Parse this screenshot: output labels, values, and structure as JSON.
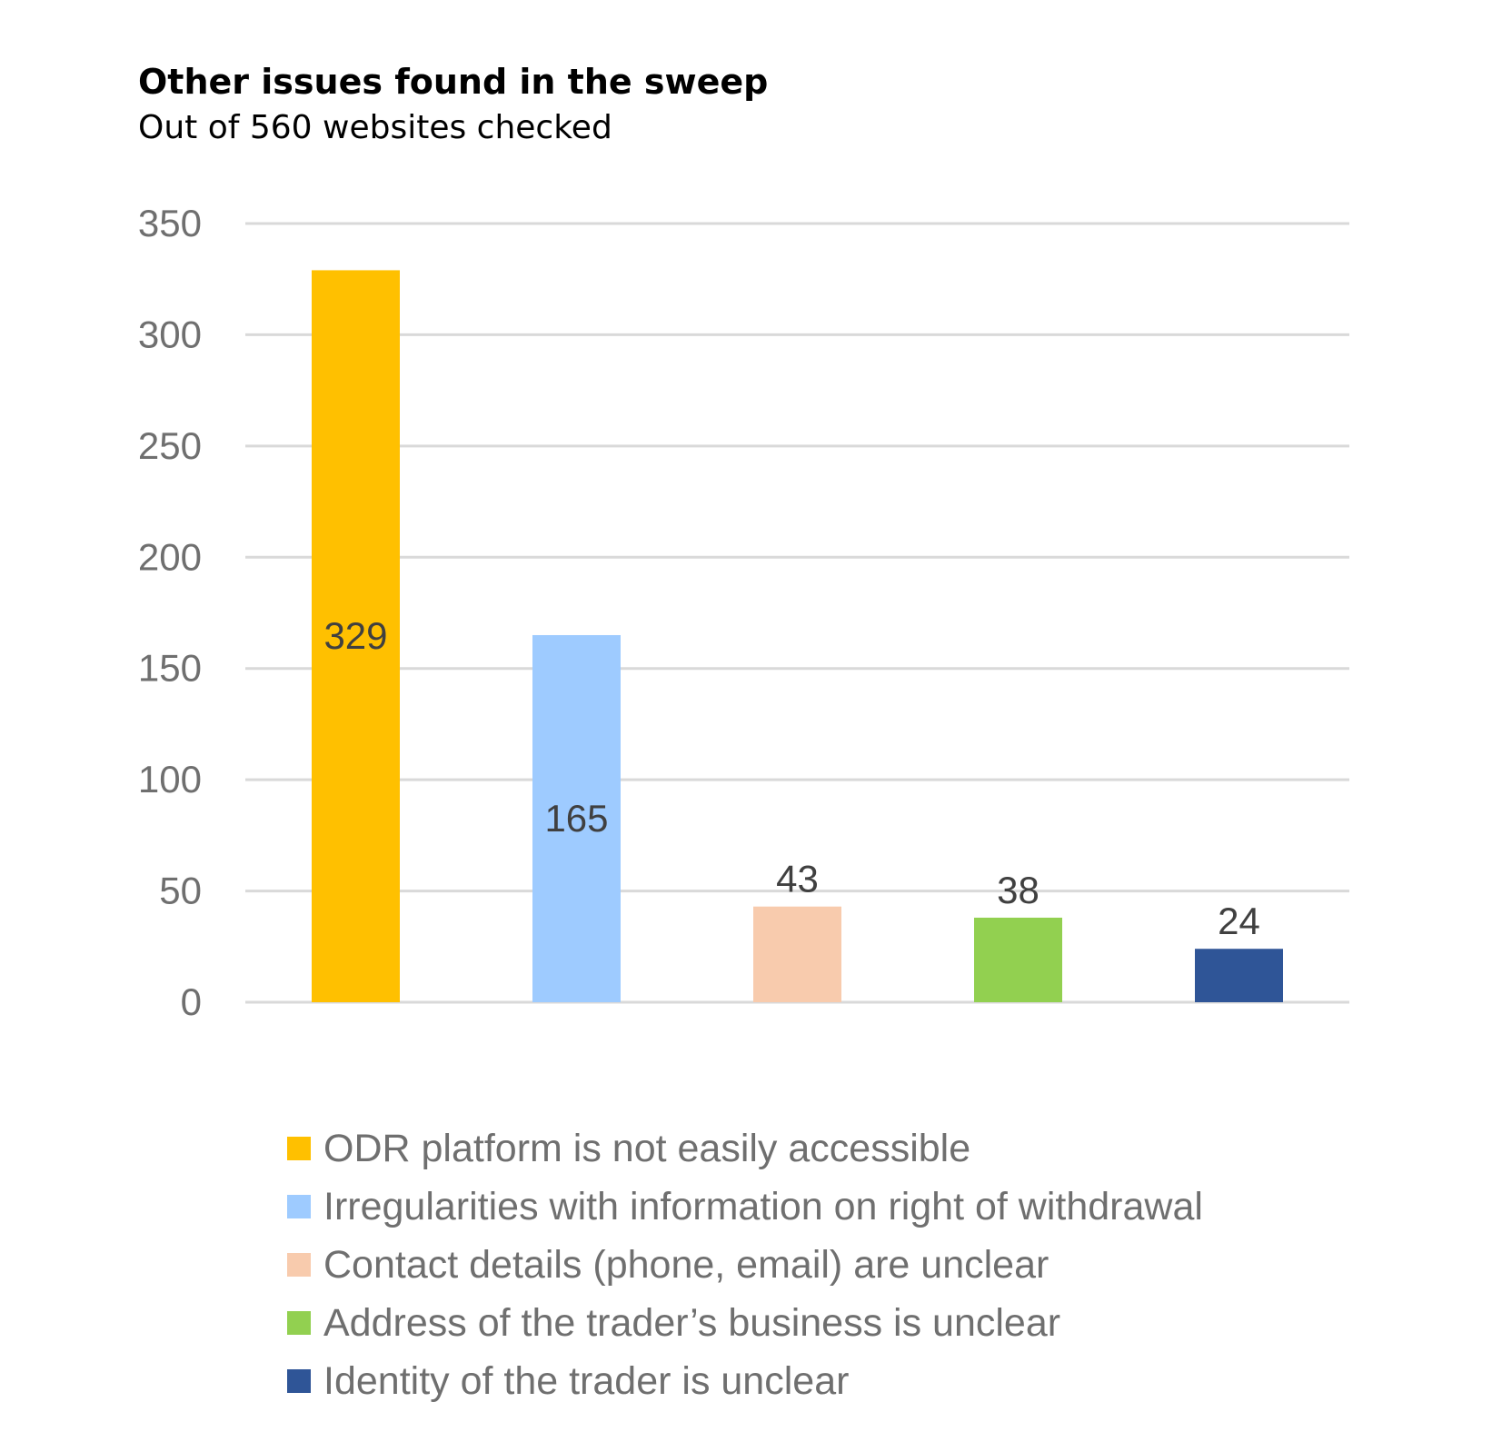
{
  "chart_data": {
    "type": "bar",
    "title": "Other issues found in the sweep",
    "subtitle": "Out of 560 websites checked",
    "xlabel": "",
    "ylabel": "",
    "ylim": [
      0,
      350
    ],
    "yticks": [
      0,
      50,
      100,
      150,
      200,
      250,
      300,
      350
    ],
    "grid": true,
    "legend_position": "bottom",
    "categories": [
      "ODR platform is not easily accessible",
      "Irregularities with information on right of withdrawal",
      "Contact details (phone, email) are unclear",
      "Address of the trader’s business is unclear",
      "Identity of the trader is unclear"
    ],
    "values": [
      329,
      165,
      43,
      38,
      24
    ],
    "data_labels": [
      "329",
      "165",
      "43",
      "38",
      "24"
    ],
    "label_placement": [
      "inside",
      "inside",
      "outside",
      "outside",
      "outside"
    ],
    "colors": [
      "#ffc000",
      "#9ecbff",
      "#f8cbad",
      "#92d050",
      "#2f5597"
    ]
  }
}
